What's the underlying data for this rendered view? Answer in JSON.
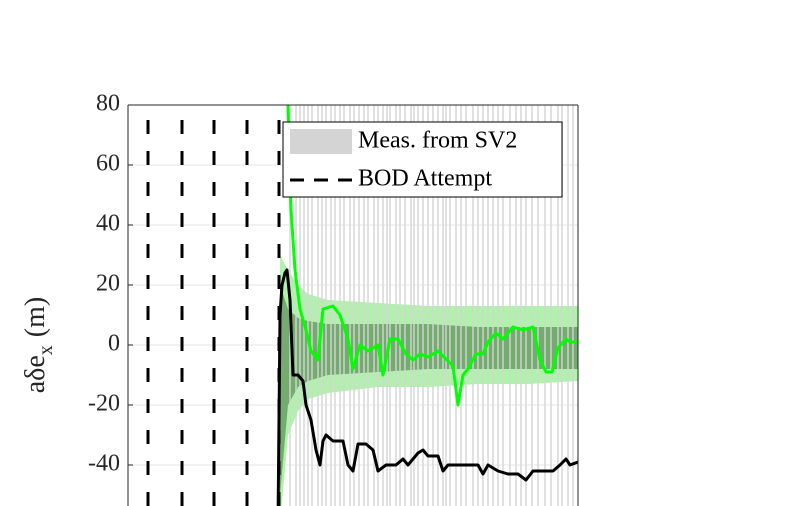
{
  "chart_data": {
    "type": "line",
    "ylabel": {
      "main": "aδe",
      "sub": "x",
      "unit": "(m)"
    },
    "xlim": [
      0,
      450
    ],
    "ylim": [
      -60,
      80
    ],
    "yticks": [
      -40,
      -20,
      0,
      20,
      40,
      60,
      80
    ],
    "grid": true,
    "measurements": {
      "name": "Meas. from SV2",
      "color": "#d4d4d4",
      "x": [
        162,
        168,
        172,
        176,
        180,
        184,
        190,
        194,
        198,
        203,
        207,
        212,
        216,
        222,
        226,
        231,
        236,
        240,
        246,
        250,
        255,
        259,
        262,
        268,
        272,
        277,
        283,
        286,
        290,
        295,
        300,
        305,
        310,
        315,
        318,
        322,
        328,
        333,
        338,
        345,
        350,
        355,
        360,
        365,
        370,
        375,
        382,
        388,
        393,
        398,
        404,
        410,
        417,
        423,
        430,
        434,
        440,
        445
      ]
    },
    "bod_attempts": {
      "name": "BOD Attempt",
      "color": "#000000",
      "x": [
        20,
        54,
        86,
        119,
        151
      ]
    },
    "bands": [
      {
        "color": "#9ff29a",
        "x": [
          152,
          160,
          170,
          180,
          200,
          250,
          300,
          350,
          400,
          450
        ],
        "upper": [
          30,
          25,
          20,
          17,
          15,
          14,
          13,
          13,
          13,
          13
        ],
        "lower": [
          -60,
          -30,
          -22,
          -18,
          -16,
          -14,
          -14,
          -13,
          -13,
          -12
        ]
      },
      {
        "color": "#6a9f66",
        "x": [
          152,
          160,
          170,
          180,
          200,
          250,
          300,
          350,
          400,
          450
        ],
        "upper": [
          20,
          12,
          9,
          8,
          7,
          7,
          7,
          6,
          6,
          6
        ],
        "lower": [
          -50,
          -20,
          -14,
          -12,
          -10,
          -9,
          -8,
          -8,
          -8,
          -8
        ]
      }
    ],
    "series": [
      {
        "color": "#00ff00",
        "x": [
          153,
          160,
          163,
          167,
          172,
          178,
          183,
          190,
          195,
          205,
          212,
          220,
          225,
          232,
          240,
          250,
          255,
          262,
          270,
          278,
          285,
          292,
          300,
          310,
          325,
          330,
          335,
          340,
          348,
          355,
          360,
          368,
          375,
          385,
          395,
          405,
          412,
          418,
          424,
          430,
          438,
          442,
          450
        ],
        "values": [
          85,
          80,
          45,
          25,
          12,
          5,
          -2,
          -5,
          12,
          13,
          10,
          2,
          -8,
          0,
          -2,
          0,
          -10,
          2,
          2,
          -3,
          -5,
          -3,
          -4,
          -2,
          -7,
          -20,
          -10,
          -8,
          -3,
          -3,
          1,
          4,
          2,
          6,
          5,
          6,
          -5,
          -9,
          -9,
          -1,
          2,
          1,
          1
        ]
      },
      {
        "color": "#000000",
        "x": [
          150,
          152,
          154,
          157,
          159,
          162,
          165,
          170,
          175,
          178,
          183,
          188,
          192,
          195,
          198,
          205,
          215,
          220,
          225,
          230,
          238,
          245,
          250,
          258,
          268,
          275,
          280,
          285,
          290,
          295,
          300,
          310,
          315,
          320,
          330,
          340,
          350,
          355,
          360,
          370,
          380,
          390,
          398,
          405,
          415,
          425,
          432,
          438,
          442,
          450
        ],
        "values": [
          -60,
          10,
          20,
          24,
          25,
          15,
          -10,
          -10,
          -12,
          -20,
          -25,
          -35,
          -40,
          -32,
          -30,
          -32,
          -32,
          -40,
          -42,
          -33,
          -33,
          -35,
          -42,
          -40,
          -40,
          -38,
          -40,
          -38,
          -36,
          -35,
          -37,
          -37,
          -42,
          -40,
          -40,
          -40,
          -40,
          -43,
          -40,
          -42,
          -43,
          -43,
          -45,
          -42,
          -42,
          -42,
          -40,
          -38,
          -40,
          -39
        ]
      }
    ]
  }
}
